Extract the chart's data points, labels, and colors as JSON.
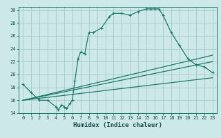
{
  "xlabel": "Humidex (Indice chaleur)",
  "ylabel": "",
  "bg_color": "#cce8e8",
  "grid_color": "#aacccc",
  "line_color": "#1a7a6a",
  "xlim": [
    -0.5,
    23.5
  ],
  "ylim": [
    14,
    30.5
  ],
  "xticks": [
    0,
    1,
    2,
    3,
    4,
    5,
    6,
    7,
    8,
    9,
    10,
    11,
    12,
    13,
    14,
    15,
    16,
    17,
    18,
    19,
    20,
    21,
    22,
    23
  ],
  "yticks": [
    14,
    16,
    18,
    20,
    22,
    24,
    26,
    28,
    30
  ],
  "main_curve_x": [
    0,
    1,
    2,
    3,
    4,
    4.3,
    4.7,
    5.0,
    5.3,
    5.7,
    6.0,
    6.3,
    6.7,
    7.0,
    7.5,
    8.0,
    8.5,
    9.5,
    10.5,
    11,
    12,
    13,
    14,
    15,
    15.5,
    16,
    16.5,
    17,
    18,
    19,
    20,
    21,
    22,
    23
  ],
  "main_curve_y": [
    18.5,
    17.2,
    16.0,
    16.0,
    15.0,
    14.5,
    15.3,
    15.0,
    14.7,
    15.5,
    16.0,
    19.0,
    22.5,
    23.5,
    23.2,
    26.5,
    26.5,
    27.2,
    29.0,
    29.5,
    29.5,
    29.2,
    29.8,
    30.2,
    30.2,
    30.2,
    30.2,
    29.2,
    26.5,
    24.5,
    22.5,
    21.5,
    21.2,
    20.3
  ],
  "line1_x": [
    0,
    23
  ],
  "line1_y": [
    16.0,
    23.0
  ],
  "line2_x": [
    0,
    23
  ],
  "line2_y": [
    16.0,
    22.0
  ],
  "line3_x": [
    0,
    23
  ],
  "line3_y": [
    16.0,
    19.5
  ]
}
